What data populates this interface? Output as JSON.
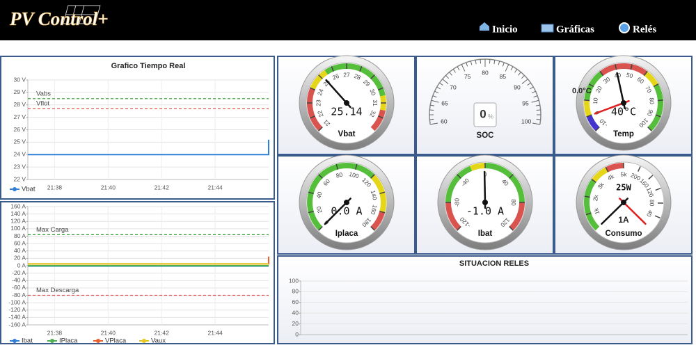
{
  "header": {
    "logo": "PV Control+",
    "nav": [
      "Inicio",
      "Gráficas",
      "Relés"
    ]
  },
  "chart_data": [
    {
      "type": "line",
      "title": "Grafico Tiempo Real",
      "x": [
        "21:37",
        "21:45",
        "21:46",
        "21:46"
      ],
      "xlim": [
        "21:37",
        "21:46"
      ],
      "xticks": [
        "21:38",
        "21:40",
        "21:42",
        "21:44"
      ],
      "ylim": [
        22,
        30
      ],
      "yticks": [
        {
          "value": 22,
          "label": "22 V"
        },
        {
          "value": 23,
          "label": "23 V"
        },
        {
          "value": 24,
          "label": "24 V"
        },
        {
          "value": 25,
          "label": "25 V"
        },
        {
          "value": 26,
          "label": "26 V"
        },
        {
          "value": 27,
          "label": "27 V"
        },
        {
          "value": 28,
          "label": "28 V"
        },
        {
          "value": 29,
          "label": "29 V"
        },
        {
          "value": 30,
          "label": "30 V"
        }
      ],
      "grid": true,
      "series": [
        {
          "name": "Vbat",
          "color": "#2f7ed8",
          "values": [
            24.0,
            24.0,
            24.0,
            25.2
          ]
        }
      ],
      "reference_lines": [
        {
          "label": "Vabs",
          "value": 28.5,
          "color": "#2a9d2a"
        },
        {
          "label": "Vflot",
          "value": 27.7,
          "color": "#d9534f"
        }
      ]
    },
    {
      "type": "line",
      "x": [
        "21:37",
        "21:45",
        "21:46",
        "21:46"
      ],
      "xlim": [
        "21:37",
        "21:46"
      ],
      "xticks": [
        "21:38",
        "21:40",
        "21:42",
        "21:44"
      ],
      "ylim": [
        -160,
        160
      ],
      "yticks": [
        {
          "value": -160,
          "label": "-160 A"
        },
        {
          "value": -140,
          "label": "-140 A"
        },
        {
          "value": -120,
          "label": "-120 A"
        },
        {
          "value": -100,
          "label": "-100 A"
        },
        {
          "value": -80,
          "label": "-80 A"
        },
        {
          "value": -60,
          "label": "-60 A"
        },
        {
          "value": -40,
          "label": "-40 A"
        },
        {
          "value": -20,
          "label": "-20 A"
        },
        {
          "value": 0,
          "label": "0 A"
        },
        {
          "value": 20,
          "label": "20 A"
        },
        {
          "value": 40,
          "label": "40 A"
        },
        {
          "value": 60,
          "label": "60 A"
        },
        {
          "value": 80,
          "label": "80 A"
        },
        {
          "value": 100,
          "label": "100 A"
        },
        {
          "value": 120,
          "label": "120 A"
        },
        {
          "value": 140,
          "label": "140 A"
        },
        {
          "value": 160,
          "label": "160 A"
        }
      ],
      "grid": true,
      "series": [
        {
          "name": "Ibat",
          "color": "#2f7ed8",
          "values": [
            -1,
            -1,
            -1,
            -1
          ]
        },
        {
          "name": "IPlaca",
          "color": "#4caf50",
          "values": [
            0,
            0,
            0,
            0
          ]
        },
        {
          "name": "VPlaca",
          "color": "#e8602c",
          "values": [
            5,
            5,
            5,
            25
          ]
        },
        {
          "name": "Vaux",
          "color": "#e6c619",
          "values": [
            5,
            5,
            5,
            5
          ]
        }
      ],
      "reference_lines": [
        {
          "label": "Max Carga",
          "value": 84,
          "color": "#2a9d2a"
        },
        {
          "label": "Max Descarga",
          "value": -80,
          "color": "#d9534f"
        }
      ]
    },
    {
      "type": "line",
      "title": "SITUACION RELES",
      "ylim": [
        0,
        100
      ],
      "yticks": [
        0,
        20,
        40,
        60,
        80,
        100
      ],
      "grid": true
    }
  ],
  "gauges": [
    {
      "title": "Vbat",
      "min": 21,
      "max": 33,
      "ticks": [
        21,
        22,
        23,
        24,
        25,
        26,
        27,
        28,
        29,
        30,
        31,
        32
      ],
      "value": 25.14,
      "bands": [
        {
          "from": 21,
          "to": 24,
          "color": "#d9534f"
        },
        {
          "from": 24,
          "to": 25.5,
          "color": "#e6d619"
        },
        {
          "from": 25.5,
          "to": 30.5,
          "color": "#55bf3b"
        },
        {
          "from": 30.5,
          "to": 31.5,
          "color": "#e6d619"
        },
        {
          "from": 31.5,
          "to": 33,
          "color": "#d9534f"
        }
      ]
    },
    {
      "title": "SOC",
      "style": "arc",
      "min": 60,
      "max": 100,
      "ticks": [
        60,
        65,
        70,
        75,
        80,
        85,
        90,
        95,
        100
      ],
      "value": 0,
      "unit": "%"
    },
    {
      "title": "Temp",
      "min": -10,
      "max": 100,
      "ticks": [
        -10,
        0,
        10,
        20,
        30,
        40,
        50,
        60,
        70,
        80,
        90,
        100
      ],
      "value": 40,
      "value_label": "40°C",
      "bands": [
        {
          "from": -10,
          "to": 0,
          "color": "#4433cc"
        },
        {
          "from": 0,
          "to": 10,
          "color": "#e6d619"
        },
        {
          "from": 10,
          "to": 30,
          "color": "#55bf3b"
        },
        {
          "from": 30,
          "to": 60,
          "color": "#d9534f"
        },
        {
          "from": 60,
          "to": 70,
          "color": "#e6d619"
        },
        {
          "from": 70,
          "to": 100,
          "color": "#55bf3b"
        }
      ],
      "secondary": {
        "value": 0,
        "value_label": "0.0°C"
      }
    },
    {
      "title": "Iplaca",
      "min": 0,
      "max": 180,
      "ticks": [
        0,
        20,
        40,
        60,
        80,
        100,
        120,
        140,
        160,
        180
      ],
      "value": 0,
      "value_label": "0.0 A",
      "bands": [
        {
          "from": 0,
          "to": 120,
          "color": "#55bf3b"
        },
        {
          "from": 120,
          "to": 160,
          "color": "#e6d619"
        },
        {
          "from": 160,
          "to": 180,
          "color": "#d9534f"
        }
      ]
    },
    {
      "title": "Ibat",
      "min": -120,
      "max": 120,
      "ticks": [
        -120,
        -80,
        -40,
        0,
        40,
        80,
        120
      ],
      "value": -1,
      "value_label": "-1.0 A",
      "bands": [
        {
          "from": -120,
          "to": -80,
          "color": "#d9534f"
        },
        {
          "from": -80,
          "to": -20,
          "color": "#55bf3b"
        },
        {
          "from": -20,
          "to": 0,
          "color": "#e6d619"
        },
        {
          "from": 0,
          "to": 80,
          "color": "#55bf3b"
        },
        {
          "from": 80,
          "to": 120,
          "color": "#d9534f"
        }
      ]
    },
    {
      "title": "Consumo",
      "min": 0,
      "max": 5000,
      "ticks": [
        {
          "value": 1000,
          "label": "1k"
        },
        {
          "value": 2000,
          "label": "2k"
        },
        {
          "value": 3000,
          "label": "3k"
        },
        {
          "value": 4000,
          "label": "4k"
        },
        {
          "value": 5000,
          "label": "5k"
        }
      ],
      "value": 25,
      "value_label": "25W",
      "bands": [
        {
          "from": 0,
          "to": 3000,
          "color": "#55bf3b"
        },
        {
          "from": 3000,
          "to": 4000,
          "color": "#e6d619"
        },
        {
          "from": 4000,
          "to": 5000,
          "color": "#d9534f"
        }
      ],
      "secondary": {
        "min": 0,
        "max": 200,
        "ticks": [
          40,
          80,
          120,
          160,
          200
        ],
        "value": 1,
        "value_label": "1A"
      }
    }
  ]
}
